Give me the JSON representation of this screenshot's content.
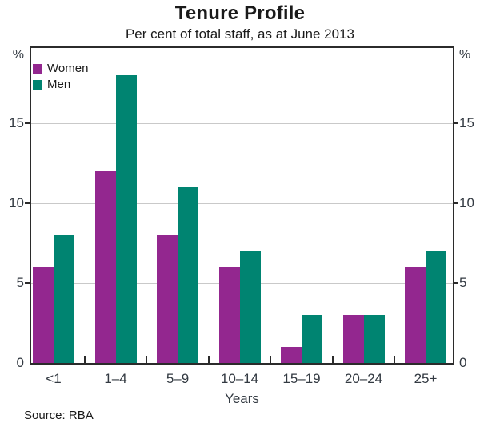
{
  "header": {
    "title": "Tenure Profile",
    "subtitle": "Per cent of total staff, as at June 2013"
  },
  "axes": {
    "left_unit": "%",
    "right_unit": "%",
    "x_label": "Years"
  },
  "footer": {
    "source": "Source: RBA"
  },
  "colors": {
    "women": "#93278F",
    "men": "#008471",
    "frame": "#2b2b2b",
    "gridline": "#c9c9c9",
    "text": "#333a42"
  },
  "chart_data": {
    "type": "bar",
    "title": "Tenure Profile",
    "subtitle": "Per cent of total staff, as at June 2013",
    "categories": [
      "<1",
      "1–4",
      "5–9",
      "10–14",
      "15–19",
      "20–24",
      "25+"
    ],
    "series": [
      {
        "name": "Women",
        "color": "#93278F",
        "values": [
          6,
          12,
          8,
          6,
          1,
          3,
          6
        ]
      },
      {
        "name": "Men",
        "color": "#008471",
        "values": [
          8,
          18,
          11,
          7,
          3,
          3,
          7
        ]
      }
    ],
    "xlabel": "Years",
    "ylabel": "%",
    "ylim": [
      0,
      20
    ],
    "y_ticks": [
      0,
      5,
      10,
      15
    ],
    "grid": "horizontal-at-5-10-15",
    "legend_position": "top-left-inside",
    "bar_grouping": "paired-touching",
    "source": "Source: RBA"
  }
}
